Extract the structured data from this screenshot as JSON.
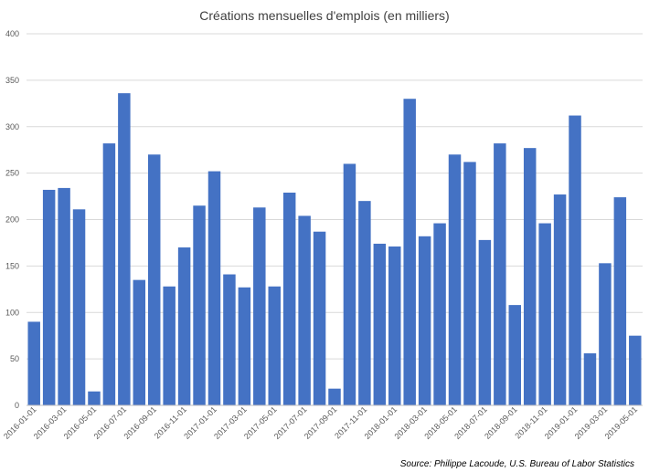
{
  "chart_data": {
    "type": "bar",
    "title": "Créations mensuelles d'emplois (en milliers)",
    "source": "Source: Philippe Lacoude, U.S. Bureau of Labor Statistics",
    "xlabel": "",
    "ylabel": "",
    "ylim": [
      0,
      400
    ],
    "yticks": [
      0,
      50,
      100,
      150,
      200,
      250,
      300,
      350,
      400
    ],
    "grid": true,
    "bar_color": "#4472c4",
    "categories": [
      "2016-01-01",
      "2016-02-01",
      "2016-03-01",
      "2016-04-01",
      "2016-05-01",
      "2016-06-01",
      "2016-07-01",
      "2016-08-01",
      "2016-09-01",
      "2016-10-01",
      "2016-11-01",
      "2016-12-01",
      "2017-01-01",
      "2017-02-01",
      "2017-03-01",
      "2017-04-01",
      "2017-05-01",
      "2017-06-01",
      "2017-07-01",
      "2017-08-01",
      "2017-09-01",
      "2017-10-01",
      "2017-11-01",
      "2017-12-01",
      "2018-01-01",
      "2018-02-01",
      "2018-03-01",
      "2018-04-01",
      "2018-05-01",
      "2018-06-01",
      "2018-07-01",
      "2018-08-01",
      "2018-09-01",
      "2018-10-01",
      "2018-11-01",
      "2018-12-01",
      "2019-01-01",
      "2019-02-01",
      "2019-03-01",
      "2019-04-01",
      "2019-05-01"
    ],
    "tick_labels": [
      "2016-01-01",
      "2016-03-01",
      "2016-05-01",
      "2016-07-01",
      "2016-09-01",
      "2016-11-01",
      "2017-01-01",
      "2017-03-01",
      "2017-05-01",
      "2017-07-01",
      "2017-09-01",
      "2017-11-01",
      "2018-01-01",
      "2018-03-01",
      "2018-05-01",
      "2018-07-01",
      "2018-09-01",
      "2018-11-01",
      "2019-01-01",
      "2019-03-01",
      "2019-05-01"
    ],
    "values": [
      90,
      232,
      234,
      211,
      15,
      282,
      336,
      135,
      270,
      128,
      170,
      215,
      252,
      141,
      127,
      213,
      128,
      229,
      204,
      187,
      18,
      260,
      220,
      174,
      171,
      330,
      182,
      196,
      270,
      262,
      178,
      282,
      108,
      277,
      196,
      227,
      312,
      56,
      153,
      224,
      75
    ]
  }
}
